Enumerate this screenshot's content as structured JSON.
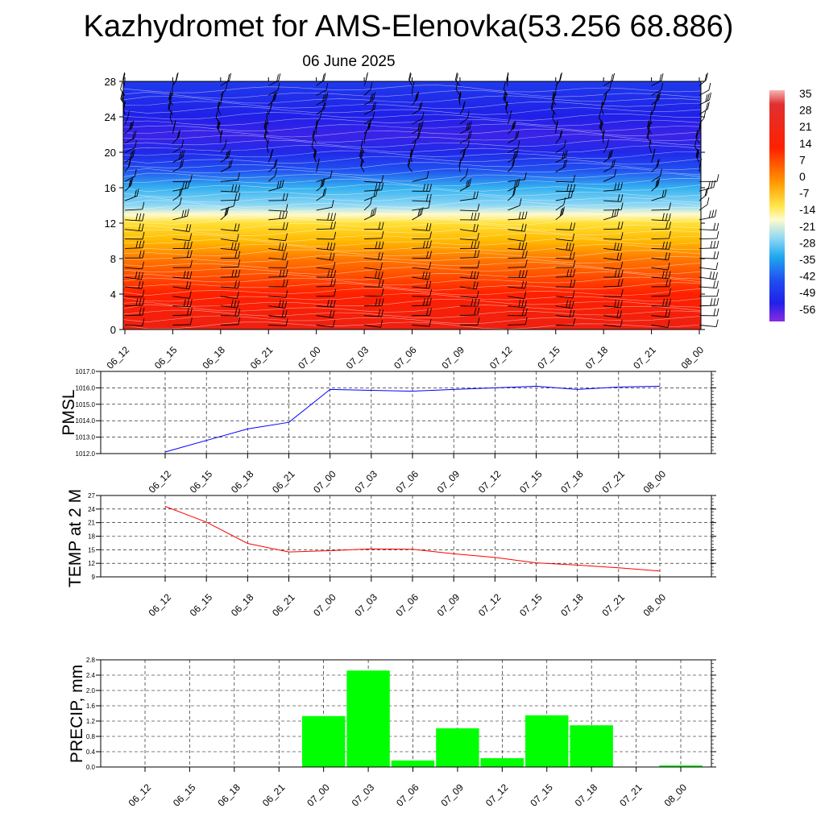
{
  "title": "Kazhydromet for AMS-Elenovka(53.256 68.886)",
  "subtitle": "06 June 2025",
  "time_labels": [
    "06_12",
    "06_15",
    "06_18",
    "06_21",
    "07_00",
    "07_03",
    "07_06",
    "07_09",
    "07_12",
    "07_15",
    "07_18",
    "07_21",
    "08_00"
  ],
  "colors": {
    "pmsl_line": "#0000ff",
    "temp_line": "#ff0000",
    "precip_bar": "#00ff00",
    "wind_barb": "#000000",
    "contour": "#ffffff"
  },
  "chart_data": [
    {
      "type": "heatmap",
      "title": "",
      "ylim": [
        0,
        28
      ],
      "yticks": [
        0,
        4,
        8,
        12,
        16,
        20,
        24,
        28
      ],
      "x": [
        "06_12",
        "06_15",
        "06_18",
        "06_21",
        "07_00",
        "07_03",
        "07_06",
        "07_09",
        "07_12",
        "07_15",
        "07_18",
        "07_21",
        "08_00"
      ],
      "colorbar": {
        "labels": [
          "35",
          "28",
          "21",
          "14",
          "7",
          "0",
          "-7",
          "-14",
          "-21",
          "-28",
          "-35",
          "-42",
          "-49",
          "-56"
        ],
        "range": [
          -60,
          35
        ]
      },
      "profile": [
        {
          "y": 0,
          "value": 25
        },
        {
          "y": 4,
          "value": 21
        },
        {
          "y": 8,
          "value": 11
        },
        {
          "y": 10,
          "value": 3
        },
        {
          "y": 12,
          "value": -5
        },
        {
          "y": 13,
          "value": -14
        },
        {
          "y": 14,
          "value": -24
        },
        {
          "y": 16,
          "value": -33
        },
        {
          "y": 18,
          "value": -45
        },
        {
          "y": 20,
          "value": -54
        },
        {
          "y": 22,
          "value": -57
        },
        {
          "y": 24,
          "value": -56
        },
        {
          "y": 26,
          "value": -53
        },
        {
          "y": 28,
          "value": -50
        }
      ],
      "wind_barbs": true
    },
    {
      "type": "line",
      "ylabel": "PMSL",
      "ylim": [
        1012.0,
        1017.0
      ],
      "yticks": [
        "1012.0",
        "1013.0",
        "1014.0",
        "1015.0",
        "1016.0",
        "1017.0"
      ],
      "x": [
        "06_12",
        "06_15",
        "06_18",
        "06_21",
        "07_00",
        "07_03",
        "07_06",
        "07_09",
        "07_12",
        "07_15",
        "07_18",
        "07_21",
        "08_00"
      ],
      "series": [
        {
          "values": [
            1012.1,
            1012.8,
            1013.5,
            1013.9,
            1015.9,
            1015.85,
            1015.8,
            1015.9,
            1016.0,
            1016.1,
            1015.9,
            1016.05,
            1016.1
          ]
        }
      ],
      "grid": true
    },
    {
      "type": "line",
      "ylabel": "TEMP at 2 M",
      "ylim": [
        9,
        27
      ],
      "yticks": [
        "9",
        "12",
        "15",
        "18",
        "21",
        "24",
        "27"
      ],
      "x": [
        "06_12",
        "06_15",
        "06_18",
        "06_21",
        "07_00",
        "07_03",
        "07_06",
        "07_09",
        "07_12",
        "07_15",
        "07_18",
        "07_21",
        "08_00"
      ],
      "series": [
        {
          "values": [
            24.6,
            21.1,
            16.4,
            14.5,
            14.8,
            15.2,
            15.1,
            14.1,
            13.3,
            12.1,
            11.6,
            11.0,
            10.3
          ]
        }
      ],
      "grid": true
    },
    {
      "type": "bar",
      "ylabel": "PRECIP, mm",
      "ylim": [
        0.0,
        2.8
      ],
      "yticks": [
        "0.0",
        "0.4",
        "0.8",
        "1.2",
        "1.6",
        "2.0",
        "2.4",
        "2.8"
      ],
      "categories": [
        "06_12",
        "06_15",
        "06_18",
        "06_21",
        "07_00",
        "07_03",
        "07_06",
        "07_09",
        "07_12",
        "07_15",
        "07_18",
        "07_21",
        "08_00"
      ],
      "values": [
        0.0,
        0.0,
        0.0,
        0.0,
        1.33,
        2.52,
        0.17,
        1.01,
        0.23,
        1.35,
        1.09,
        0.0,
        0.04
      ],
      "grid": true
    }
  ]
}
